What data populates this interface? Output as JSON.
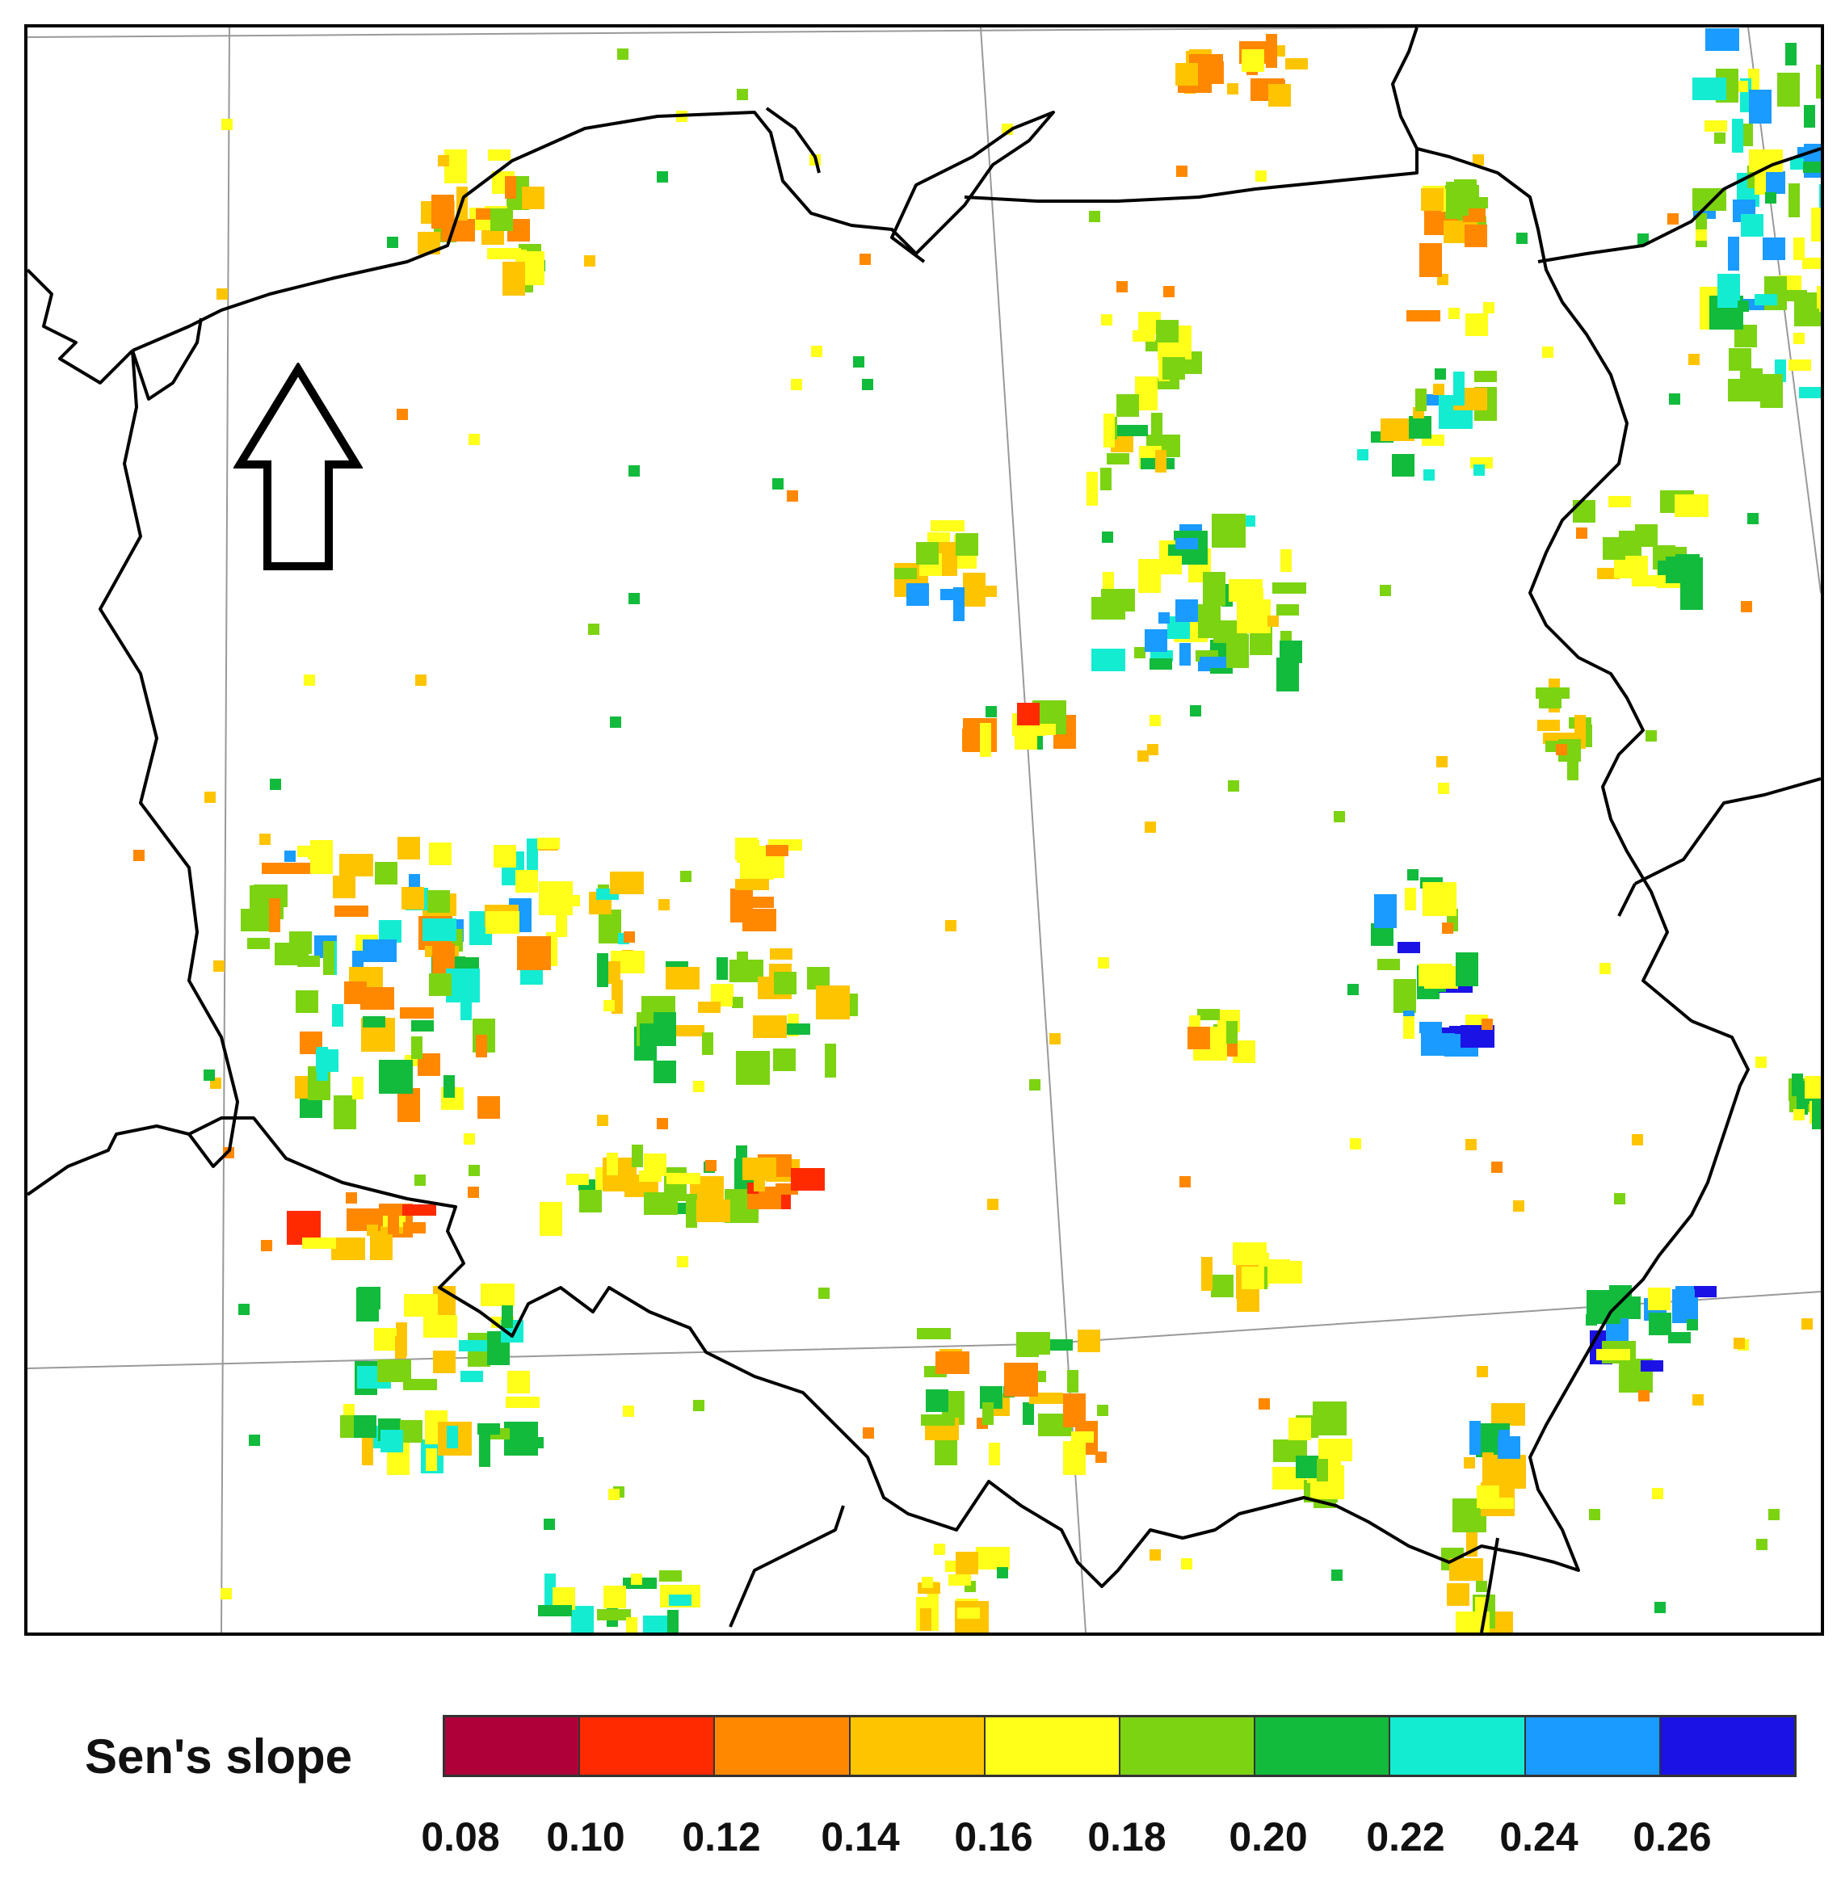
{
  "legend": {
    "title": "Sen's slope",
    "bins": [
      {
        "color": "#b0003a"
      },
      {
        "color": "#ff2a00"
      },
      {
        "color": "#ff8800"
      },
      {
        "color": "#ffc400"
      },
      {
        "color": "#ffff1a"
      },
      {
        "color": "#7cd312"
      },
      {
        "color": "#12bb3c"
      },
      {
        "color": "#14ecd2"
      },
      {
        "color": "#1a9bff"
      },
      {
        "color": "#1b12e6"
      }
    ],
    "ticks": [
      "0.08",
      "0.10",
      "0.12",
      "0.14",
      "0.16",
      "0.18",
      "0.20",
      "0.22",
      "0.24",
      "0.26"
    ]
  },
  "map": {
    "north_arrow_icon": "arrow-up-outline-icon",
    "colors": {
      "border": "#000000",
      "graticule": "#999999",
      "background": "#ffffff"
    }
  }
}
